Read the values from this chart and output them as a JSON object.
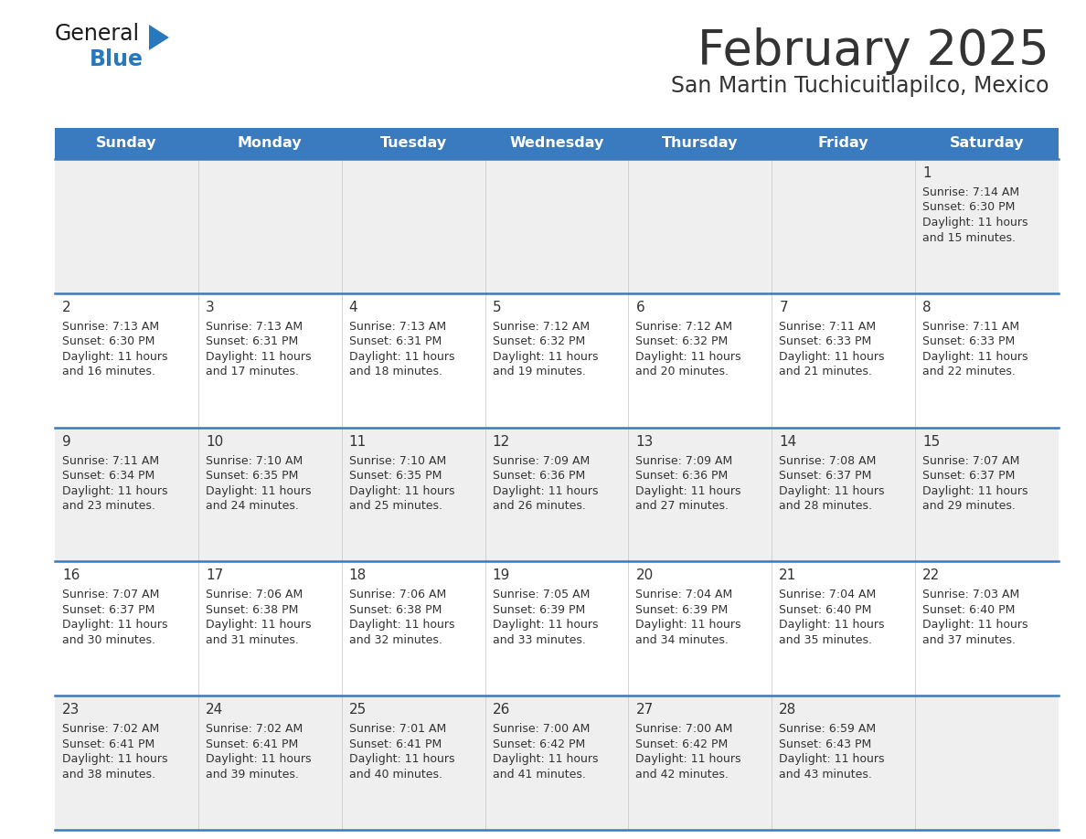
{
  "title": "February 2025",
  "subtitle": "San Martin Tuchicuitlapilco, Mexico",
  "header_color": "#3a7abf",
  "header_text_color": "#ffffff",
  "day_names": [
    "Sunday",
    "Monday",
    "Tuesday",
    "Wednesday",
    "Thursday",
    "Friday",
    "Saturday"
  ],
  "bg_color": "#ffffff",
  "cell_bg_light": "#efefef",
  "cell_bg_white": "#ffffff",
  "border_color": "#3a7abf",
  "text_color": "#333333",
  "logo_general_color": "#1a1a1a",
  "logo_blue_color": "#2878be",
  "calendar_data": [
    [
      null,
      null,
      null,
      null,
      null,
      null,
      {
        "day": "1",
        "sunrise": "7:14 AM",
        "sunset": "6:30 PM",
        "daylight_h": "11 hours",
        "daylight_m": "and 15 minutes."
      }
    ],
    [
      {
        "day": "2",
        "sunrise": "7:13 AM",
        "sunset": "6:30 PM",
        "daylight_h": "11 hours",
        "daylight_m": "and 16 minutes."
      },
      {
        "day": "3",
        "sunrise": "7:13 AM",
        "sunset": "6:31 PM",
        "daylight_h": "11 hours",
        "daylight_m": "and 17 minutes."
      },
      {
        "day": "4",
        "sunrise": "7:13 AM",
        "sunset": "6:31 PM",
        "daylight_h": "11 hours",
        "daylight_m": "and 18 minutes."
      },
      {
        "day": "5",
        "sunrise": "7:12 AM",
        "sunset": "6:32 PM",
        "daylight_h": "11 hours",
        "daylight_m": "and 19 minutes."
      },
      {
        "day": "6",
        "sunrise": "7:12 AM",
        "sunset": "6:32 PM",
        "daylight_h": "11 hours",
        "daylight_m": "and 20 minutes."
      },
      {
        "day": "7",
        "sunrise": "7:11 AM",
        "sunset": "6:33 PM",
        "daylight_h": "11 hours",
        "daylight_m": "and 21 minutes."
      },
      {
        "day": "8",
        "sunrise": "7:11 AM",
        "sunset": "6:33 PM",
        "daylight_h": "11 hours",
        "daylight_m": "and 22 minutes."
      }
    ],
    [
      {
        "day": "9",
        "sunrise": "7:11 AM",
        "sunset": "6:34 PM",
        "daylight_h": "11 hours",
        "daylight_m": "and 23 minutes."
      },
      {
        "day": "10",
        "sunrise": "7:10 AM",
        "sunset": "6:35 PM",
        "daylight_h": "11 hours",
        "daylight_m": "and 24 minutes."
      },
      {
        "day": "11",
        "sunrise": "7:10 AM",
        "sunset": "6:35 PM",
        "daylight_h": "11 hours",
        "daylight_m": "and 25 minutes."
      },
      {
        "day": "12",
        "sunrise": "7:09 AM",
        "sunset": "6:36 PM",
        "daylight_h": "11 hours",
        "daylight_m": "and 26 minutes."
      },
      {
        "day": "13",
        "sunrise": "7:09 AM",
        "sunset": "6:36 PM",
        "daylight_h": "11 hours",
        "daylight_m": "and 27 minutes."
      },
      {
        "day": "14",
        "sunrise": "7:08 AM",
        "sunset": "6:37 PM",
        "daylight_h": "11 hours",
        "daylight_m": "and 28 minutes."
      },
      {
        "day": "15",
        "sunrise": "7:07 AM",
        "sunset": "6:37 PM",
        "daylight_h": "11 hours",
        "daylight_m": "and 29 minutes."
      }
    ],
    [
      {
        "day": "16",
        "sunrise": "7:07 AM",
        "sunset": "6:37 PM",
        "daylight_h": "11 hours",
        "daylight_m": "and 30 minutes."
      },
      {
        "day": "17",
        "sunrise": "7:06 AM",
        "sunset": "6:38 PM",
        "daylight_h": "11 hours",
        "daylight_m": "and 31 minutes."
      },
      {
        "day": "18",
        "sunrise": "7:06 AM",
        "sunset": "6:38 PM",
        "daylight_h": "11 hours",
        "daylight_m": "and 32 minutes."
      },
      {
        "day": "19",
        "sunrise": "7:05 AM",
        "sunset": "6:39 PM",
        "daylight_h": "11 hours",
        "daylight_m": "and 33 minutes."
      },
      {
        "day": "20",
        "sunrise": "7:04 AM",
        "sunset": "6:39 PM",
        "daylight_h": "11 hours",
        "daylight_m": "and 34 minutes."
      },
      {
        "day": "21",
        "sunrise": "7:04 AM",
        "sunset": "6:40 PM",
        "daylight_h": "11 hours",
        "daylight_m": "and 35 minutes."
      },
      {
        "day": "22",
        "sunrise": "7:03 AM",
        "sunset": "6:40 PM",
        "daylight_h": "11 hours",
        "daylight_m": "and 37 minutes."
      }
    ],
    [
      {
        "day": "23",
        "sunrise": "7:02 AM",
        "sunset": "6:41 PM",
        "daylight_h": "11 hours",
        "daylight_m": "and 38 minutes."
      },
      {
        "day": "24",
        "sunrise": "7:02 AM",
        "sunset": "6:41 PM",
        "daylight_h": "11 hours",
        "daylight_m": "and 39 minutes."
      },
      {
        "day": "25",
        "sunrise": "7:01 AM",
        "sunset": "6:41 PM",
        "daylight_h": "11 hours",
        "daylight_m": "and 40 minutes."
      },
      {
        "day": "26",
        "sunrise": "7:00 AM",
        "sunset": "6:42 PM",
        "daylight_h": "11 hours",
        "daylight_m": "and 41 minutes."
      },
      {
        "day": "27",
        "sunrise": "7:00 AM",
        "sunset": "6:42 PM",
        "daylight_h": "11 hours",
        "daylight_m": "and 42 minutes."
      },
      {
        "day": "28",
        "sunrise": "6:59 AM",
        "sunset": "6:43 PM",
        "daylight_h": "11 hours",
        "daylight_m": "and 43 minutes."
      },
      null
    ]
  ]
}
